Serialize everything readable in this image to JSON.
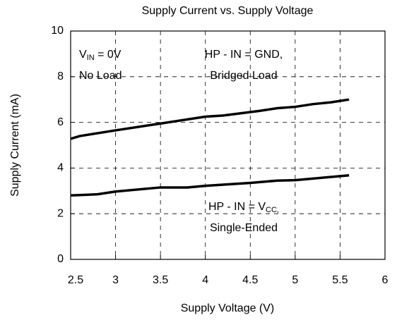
{
  "chart_data": {
    "type": "line",
    "title": "Supply Current vs. Supply Voltage",
    "x_label": "Supply Voltage (V)",
    "y_label": "Supply Current (mA)",
    "xlim": [
      2.5,
      6
    ],
    "ylim": [
      0,
      10
    ],
    "xticks": [
      2.5,
      3,
      3.5,
      4,
      4.5,
      5,
      5.5,
      6
    ],
    "yticks": [
      0,
      2,
      4,
      6,
      8,
      10
    ],
    "grid": true,
    "series": [
      {
        "name": "HP - IN = GND, Bridged Load",
        "color": "#000000",
        "x": [
          2.5,
          2.6,
          3.0,
          3.5,
          4.0,
          4.2,
          4.5,
          4.6,
          4.8,
          5.0,
          5.2,
          5.4,
          5.6
        ],
        "values": [
          5.28,
          5.4,
          5.65,
          5.95,
          6.25,
          6.3,
          6.45,
          6.5,
          6.62,
          6.68,
          6.8,
          6.88,
          7.0
        ]
      },
      {
        "name": "HP - IN = VCC, Single-Ended",
        "color": "#000000",
        "x": [
          2.5,
          2.8,
          3.0,
          3.5,
          3.8,
          4.0,
          4.5,
          4.8,
          5.0,
          5.6
        ],
        "values": [
          2.8,
          2.85,
          2.97,
          3.15,
          3.15,
          3.22,
          3.35,
          3.45,
          3.47,
          3.68
        ]
      }
    ],
    "annotations": [
      {
        "lines": [
          [
            {
              "text": "V"
            },
            {
              "text": "IN",
              "sub": true
            },
            {
              "text": " = 0V"
            }
          ],
          [
            {
              "text": "No Load"
            }
          ]
        ]
      },
      {
        "lines": [
          [
            {
              "text": "HP - IN = GND,"
            }
          ],
          [
            {
              "text": "Bridged Load"
            }
          ]
        ]
      },
      {
        "lines": [
          [
            {
              "text": "HP - IN = V"
            },
            {
              "text": "CC,",
              "sub": true
            }
          ],
          [
            {
              "text": "Single-Ended"
            }
          ]
        ]
      }
    ]
  }
}
